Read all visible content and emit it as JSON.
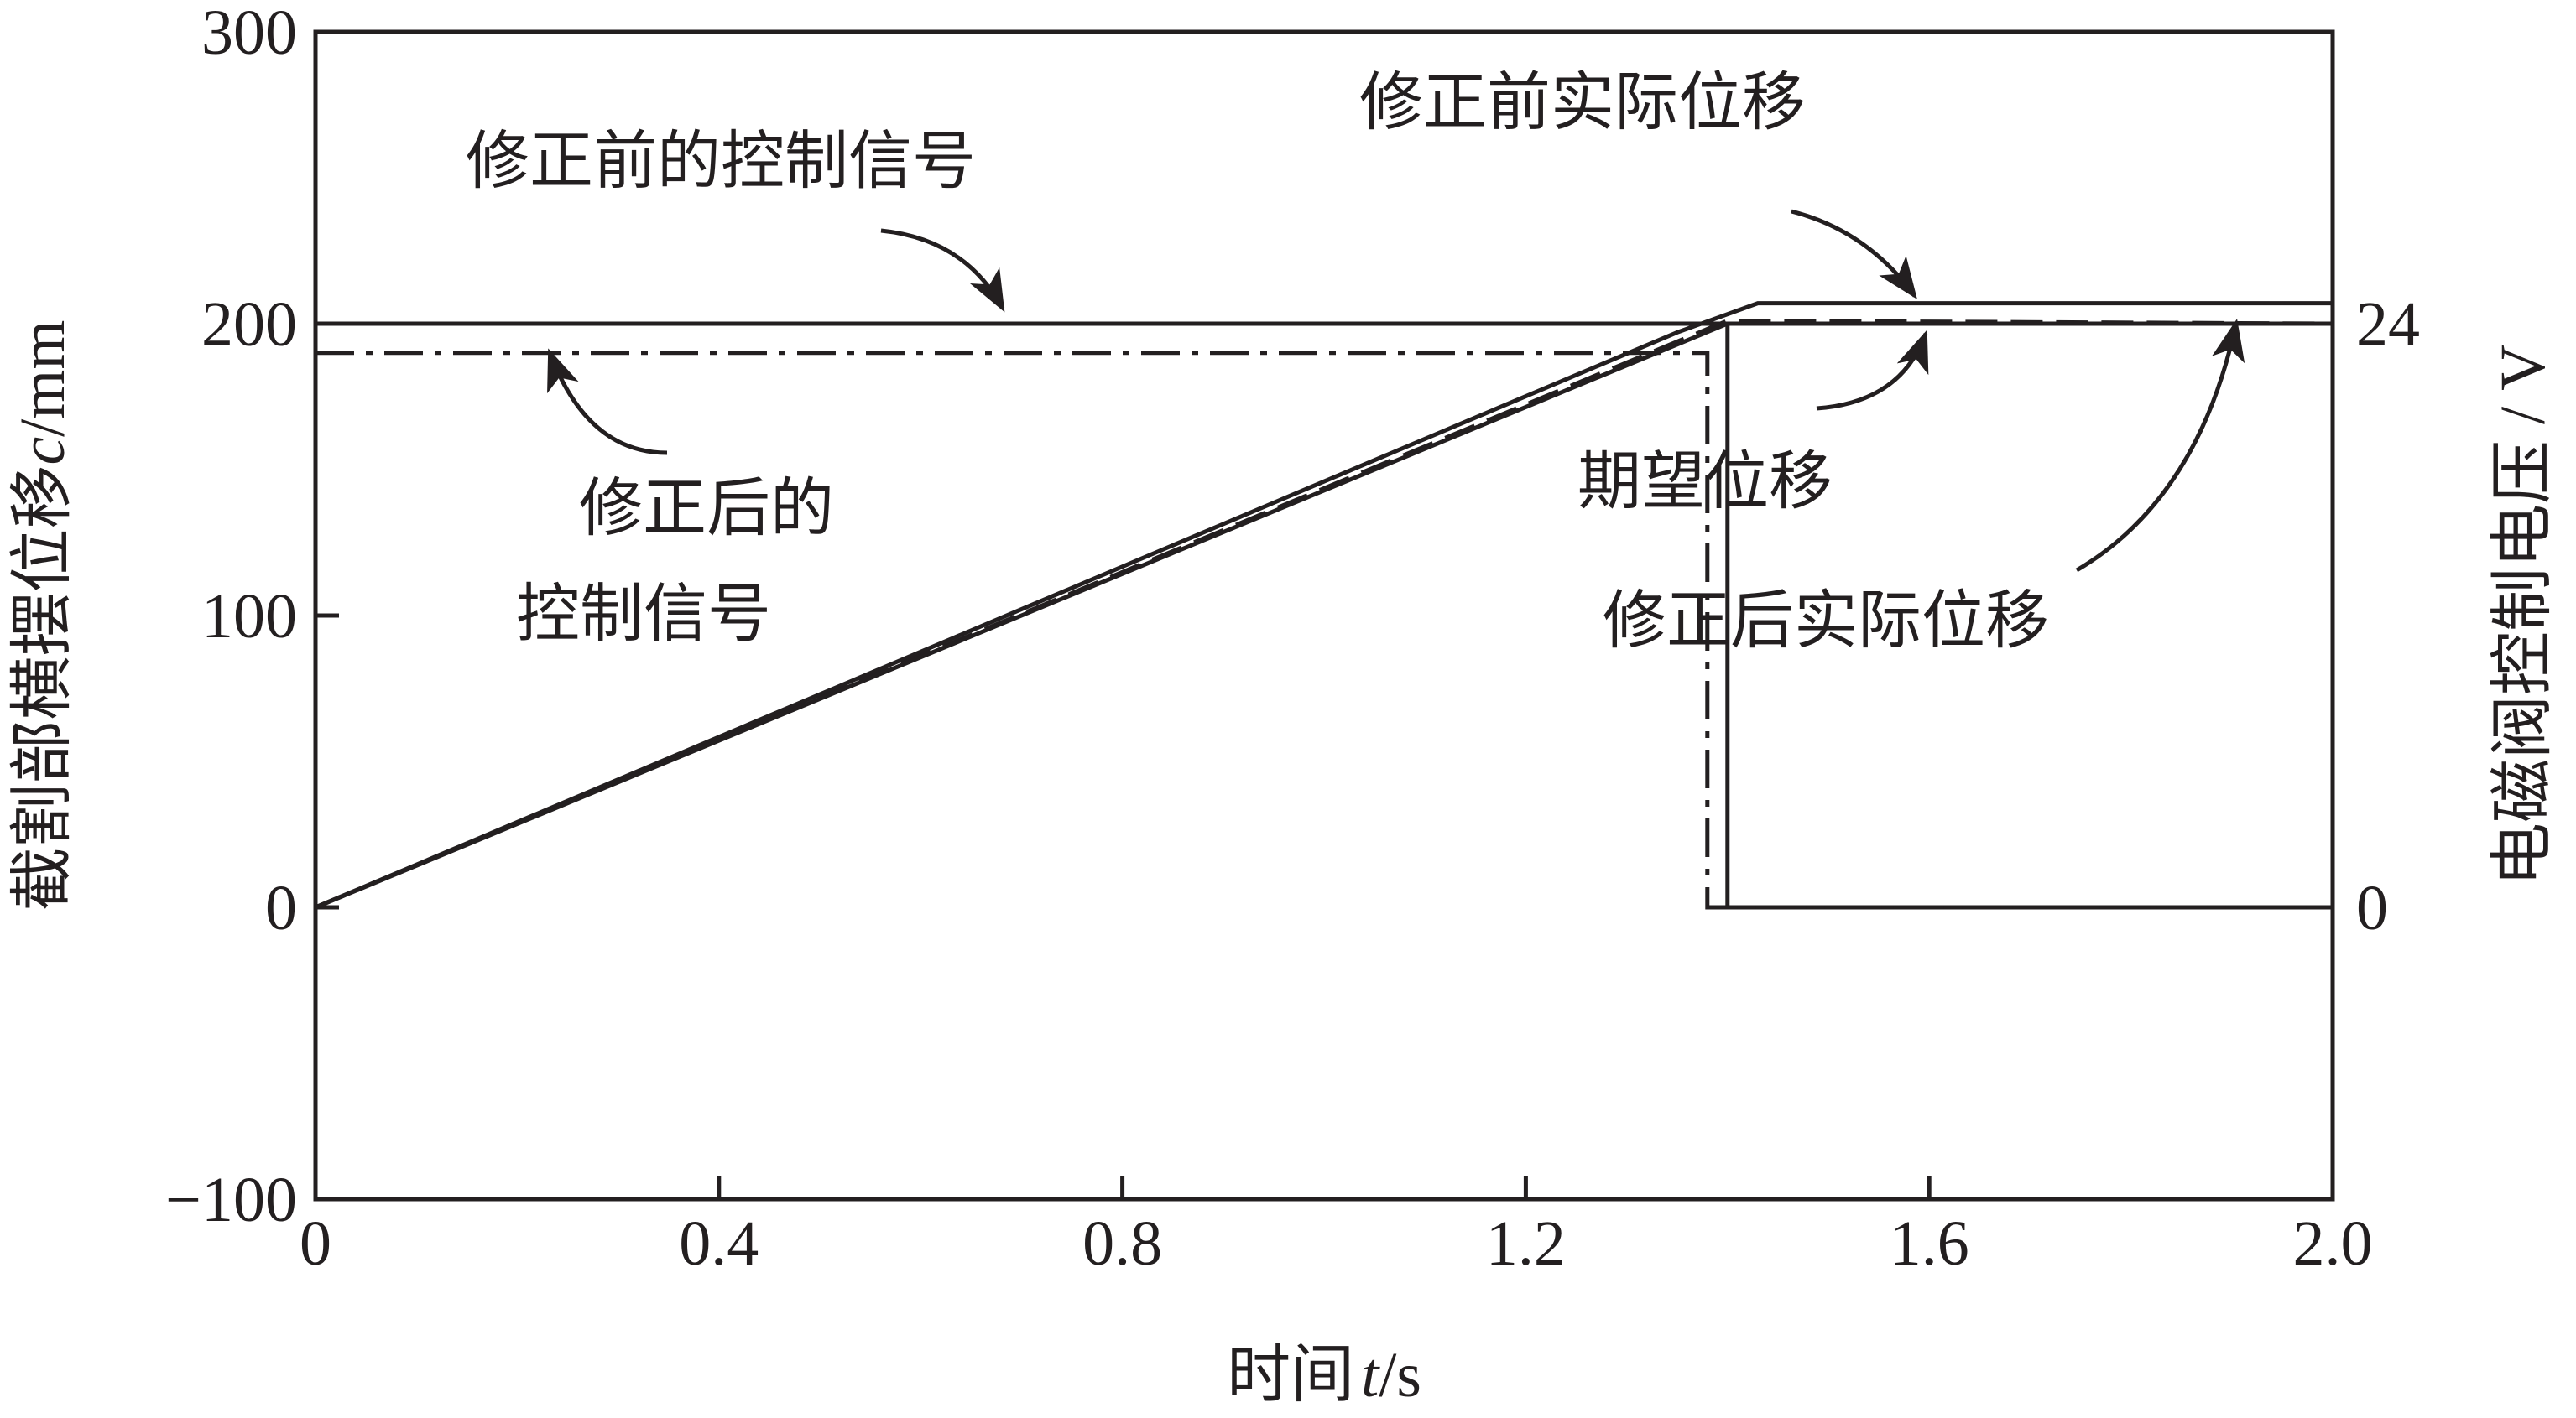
{
  "chart_data": {
    "type": "line",
    "title": "",
    "xlabel": "时间",
    "xlabel_var": "t",
    "xlabel_unit": "/s",
    "ylabel": "截割部横摆位移",
    "ylabel_var": "c",
    "ylabel_unit": "/mm",
    "y2label": "电磁阀控制电压 / V",
    "xlim": [
      0,
      2.0
    ],
    "ylim": [
      -100,
      300
    ],
    "x_ticks": [
      "0",
      "0.4",
      "0.8",
      "1.2",
      "1.6",
      "2.0"
    ],
    "x_tick_values": [
      0,
      0.4,
      0.8,
      1.2,
      1.6,
      2.0
    ],
    "y_ticks": [
      "−100",
      "0",
      "100",
      "200",
      "300"
    ],
    "y_tick_values": [
      -100,
      0,
      100,
      200,
      300
    ],
    "y2_ticks": [
      "0",
      "24"
    ],
    "y2_tick_values": [
      0,
      24
    ],
    "y2_positions_on_left_axis": [
      0,
      200
    ],
    "grid": false,
    "series": [
      {
        "name": "修正前实际位移",
        "style": "solid",
        "x": [
          0,
          1.35,
          1.43,
          2.0
        ],
        "y": [
          0,
          197,
          207,
          207
        ]
      },
      {
        "name": "修正后实际位移",
        "style": "dashed",
        "x": [
          0,
          1.4,
          2.0
        ],
        "y": [
          0,
          201,
          200
        ]
      },
      {
        "name": "期望位移",
        "style": "solid",
        "x": [
          0,
          1.4,
          2.0
        ],
        "y": [
          0,
          200,
          200
        ]
      },
      {
        "name": "修正前的控制信号",
        "style": "solid",
        "x": [
          0,
          1.4,
          1.4,
          2.0
        ],
        "y": [
          200,
          200,
          0,
          0
        ]
      },
      {
        "name": "修正后的控制信号",
        "style": "dashdot",
        "x": [
          0,
          1.38,
          1.38,
          2.0
        ],
        "y": [
          190,
          190,
          0,
          0
        ]
      }
    ],
    "annotations": [
      {
        "text": "修正前的控制信号"
      },
      {
        "text": "修正前实际位移"
      },
      {
        "text": "修正后的"
      },
      {
        "text": "控制信号"
      },
      {
        "text": "期望位移"
      },
      {
        "text": "修正后实际位移"
      }
    ]
  }
}
